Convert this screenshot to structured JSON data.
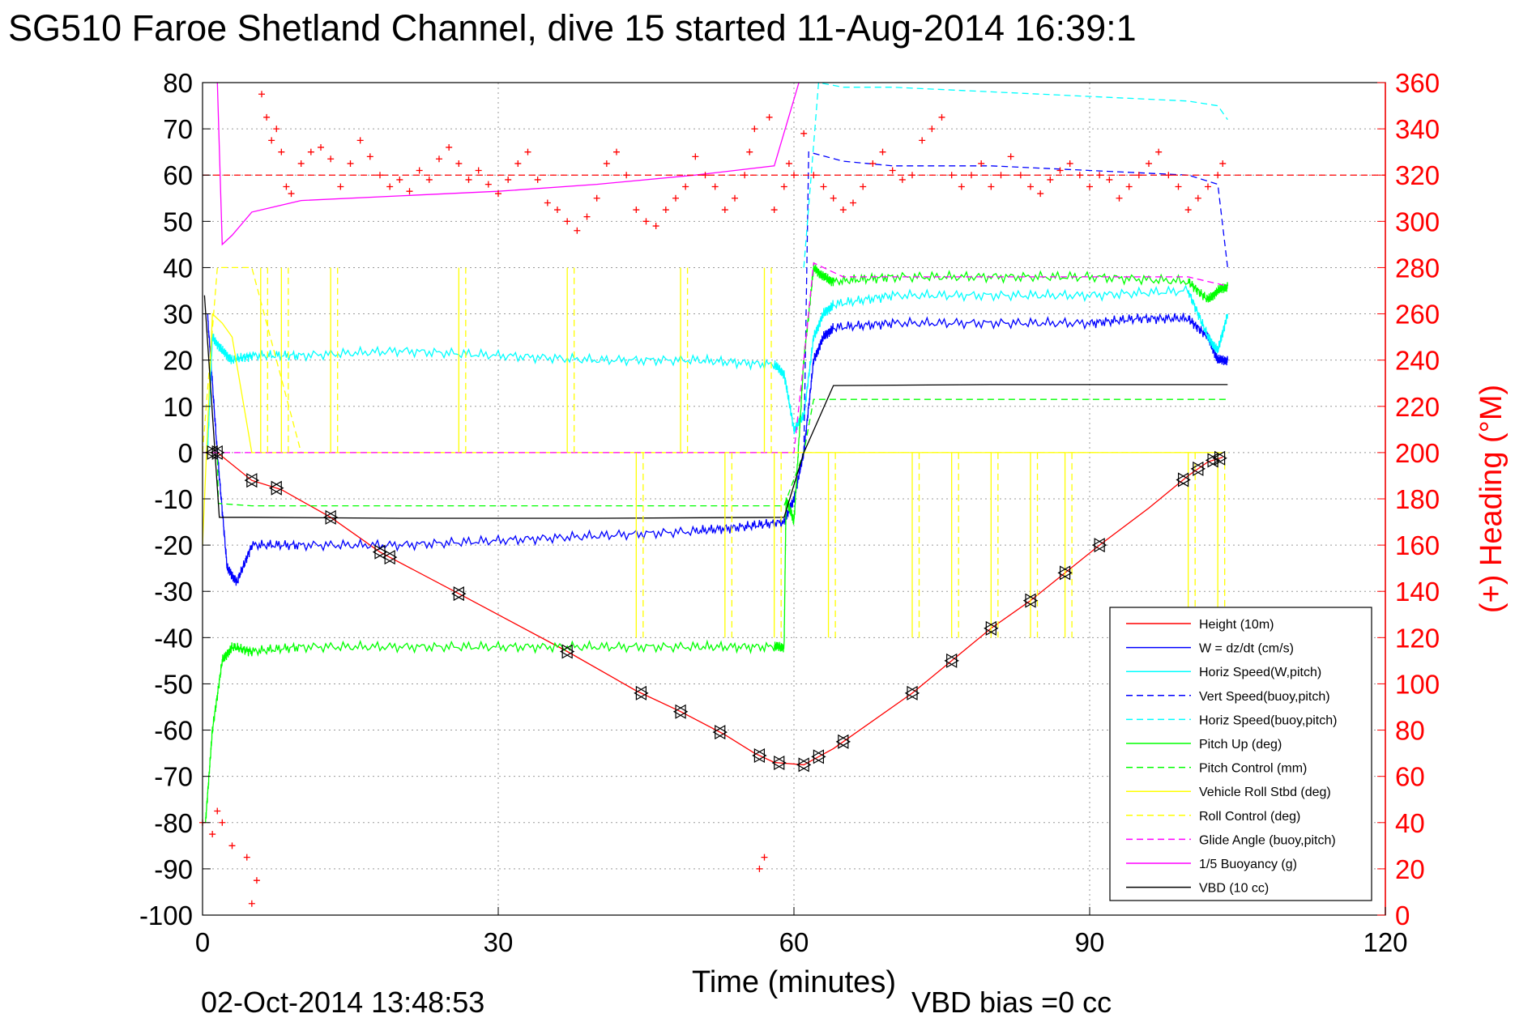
{
  "title": "SG510 Faroe Shetland Channel, dive 15 started 11-Aug-2014 16:39:1",
  "footer": {
    "timestamp": "02-Oct-2014 13:48:53",
    "vbd_bias": "VBD bias =0 cc"
  },
  "colors": {
    "height": "#ff0000",
    "w": "#0000ff",
    "horiz": "#00ffff",
    "pitch": "#00ff00",
    "roll": "#ffff00",
    "glide": "#ff00ff",
    "buoy": "#ff00ff",
    "vbd": "#000000",
    "heading": "#ff0000"
  },
  "chart_data": {
    "type": "line",
    "xlabel": "Time (minutes)",
    "ylabel_right": "(+) Heading (°M)",
    "xlim": [
      0,
      120
    ],
    "ylim_left": [
      -100,
      80
    ],
    "ylim_right": [
      0,
      360
    ],
    "xticks": [
      "0",
      "30",
      "60",
      "90",
      "120"
    ],
    "yticks_left": [
      "80",
      "70",
      "60",
      "50",
      "40",
      "30",
      "20",
      "10",
      "0",
      "-10",
      "-20",
      "-30",
      "-40",
      "-50",
      "-60",
      "-70",
      "-80",
      "-90",
      "-100"
    ],
    "yticks_right": [
      "360",
      "340",
      "320",
      "300",
      "280",
      "260",
      "240",
      "220",
      "200",
      "180",
      "160",
      "140",
      "120",
      "100",
      "80",
      "60",
      "40",
      "20",
      "0"
    ],
    "grid": true,
    "legend_position": "bottom-right",
    "heading_target_deg": 320,
    "legend": [
      {
        "key": "height",
        "label": "Height (10m)",
        "color": "#ff0000",
        "dash": false
      },
      {
        "key": "w",
        "label": "W = dz/dt (cm/s)",
        "color": "#0000ff",
        "dash": false
      },
      {
        "key": "horiz",
        "label": "Horiz Speed(W,pitch)",
        "color": "#00ffff",
        "dash": false
      },
      {
        "key": "vert_buoy",
        "label": "Vert Speed(buoy,pitch)",
        "color": "#0000ff",
        "dash": true
      },
      {
        "key": "horiz_buoy",
        "label": "Horiz Speed(buoy,pitch)",
        "color": "#00ffff",
        "dash": true
      },
      {
        "key": "pitch",
        "label": "Pitch Up (deg)",
        "color": "#00ff00",
        "dash": false
      },
      {
        "key": "pitch_ctrl",
        "label": "Pitch Control (mm)",
        "color": "#00ff00",
        "dash": true
      },
      {
        "key": "roll",
        "label": "Vehicle Roll Stbd (deg)",
        "color": "#ffff00",
        "dash": false
      },
      {
        "key": "roll_ctrl",
        "label": "Roll Control (deg)",
        "color": "#ffff00",
        "dash": true
      },
      {
        "key": "glide",
        "label": "Glide Angle (buoy,pitch)",
        "color": "#ff00ff",
        "dash": true
      },
      {
        "key": "buoy",
        "label": "1/5 Buoyancy (g)",
        "color": "#ff00ff",
        "dash": false
      },
      {
        "key": "vbd",
        "label": "VBD (10 cc)",
        "color": "#000000",
        "dash": false
      }
    ],
    "series": [
      {
        "key": "height",
        "x": [
          0,
          1.5,
          5,
          8,
          13,
          18,
          26,
          37,
          44,
          48.5,
          53,
          56,
          58,
          61,
          64,
          72,
          76,
          80,
          84,
          87.5,
          91,
          96,
          100,
          102,
          103.5
        ],
        "y": [
          0,
          0,
          -6,
          -8,
          -14,
          -21.5,
          -30.5,
          -43,
          -51.5,
          -56,
          -61,
          -65,
          -67,
          -67.5,
          -64,
          -52,
          -45,
          -38,
          -32,
          -26,
          -20,
          -12,
          -5,
          -2,
          -1
        ]
      },
      {
        "key": "w",
        "x": [
          0.5,
          1.5,
          2.5,
          3.5,
          5,
          10,
          20,
          30,
          40,
          50,
          55,
          59,
          60,
          61,
          62,
          63,
          64,
          70,
          80,
          90,
          95,
          100,
          102,
          103,
          104
        ],
        "y": [
          30,
          0,
          -25,
          -28,
          -20,
          -20,
          -20,
          -19,
          -18,
          -17,
          -16,
          -15,
          -10,
          0,
          20,
          25,
          27,
          28,
          28,
          28,
          29,
          29,
          25,
          20,
          20
        ]
      },
      {
        "key": "horiz",
        "x": [
          0.5,
          1,
          2,
          3,
          5,
          10,
          20,
          30,
          40,
          50,
          58,
          59,
          60,
          61,
          62,
          63,
          64,
          70,
          80,
          90,
          100,
          102,
          103,
          104
        ],
        "y": [
          0,
          25,
          22,
          20,
          21,
          21,
          22,
          21,
          20,
          20,
          19,
          17,
          5,
          8,
          25,
          30,
          32,
          34,
          34,
          34,
          35,
          25,
          22,
          30
        ]
      },
      {
        "key": "vert_buoy",
        "x": [
          61,
          61.5,
          65,
          70,
          80,
          90,
          100,
          103,
          104
        ],
        "y": [
          0,
          65,
          63,
          62,
          62,
          61,
          60,
          58,
          40
        ]
      },
      {
        "key": "horiz_buoy",
        "x": [
          61,
          62.5,
          65,
          70,
          80,
          90,
          100,
          103,
          104
        ],
        "y": [
          40,
          80,
          79,
          79,
          78,
          77,
          76,
          75,
          72
        ]
      },
      {
        "key": "pitch",
        "x": [
          0.3,
          1,
          2,
          3,
          5,
          10,
          20,
          30,
          40,
          50,
          58,
          59,
          59.2,
          60,
          61,
          62,
          63,
          64,
          70,
          80,
          90,
          100,
          102,
          103,
          104
        ],
        "y": [
          -80,
          -60,
          -45,
          -42,
          -43,
          -42,
          -42,
          -42,
          -42,
          -42,
          -42,
          -42,
          -10,
          -15,
          20,
          40,
          38,
          37,
          38,
          38,
          38,
          37,
          33,
          35,
          36
        ]
      },
      {
        "key": "pitch_ctrl",
        "x": [
          0,
          1.5,
          1.6,
          5,
          20,
          40,
          58,
          59,
          61,
          62,
          80,
          100,
          104
        ],
        "y": [
          0,
          0,
          -11,
          -11.5,
          -11.5,
          -11.5,
          -11.5,
          -11.5,
          0,
          11.5,
          11.5,
          11.5,
          11.5
        ]
      },
      {
        "key": "roll",
        "x": [
          0,
          1,
          2,
          3,
          5,
          10,
          20,
          30,
          40,
          50,
          55,
          58,
          60,
          62,
          70,
          80,
          90,
          100,
          102,
          103
        ],
        "y": [
          -20,
          30,
          28,
          25,
          0,
          0,
          0,
          0,
          0,
          0,
          0,
          0,
          0,
          0,
          0,
          0,
          0,
          0,
          0,
          0
        ]
      },
      {
        "key": "roll_ctrl",
        "x": [
          0,
          1.5,
          5,
          10,
          30,
          50,
          60,
          62,
          80,
          100,
          104
        ],
        "y": [
          0,
          40,
          40,
          0,
          0,
          0,
          0,
          0,
          0,
          0,
          0
        ]
      },
      {
        "key": "glide",
        "x": [
          0,
          30,
          60,
          61,
          62,
          65,
          80,
          100,
          104
        ],
        "y": [
          0,
          0,
          0,
          20,
          41,
          38,
          38,
          38,
          36
        ]
      },
      {
        "key": "buoy",
        "x": [
          1.5,
          2,
          3,
          5,
          10,
          20,
          30,
          40,
          50,
          58,
          60.5
        ],
        "y": [
          80,
          45,
          47,
          52,
          54.5,
          55.5,
          56.5,
          58,
          60,
          62,
          80
        ]
      },
      {
        "key": "vbd",
        "x": [
          0.2,
          1.7,
          5,
          20,
          40,
          59,
          61,
          64,
          80,
          100,
          104
        ],
        "y": [
          34,
          -14,
          -14,
          -14.2,
          -14.2,
          -14,
          0,
          14.5,
          14.7,
          14.7,
          14.7
        ]
      }
    ],
    "roll_spikes": {
      "up": [
        5.9,
        8,
        13,
        26,
        37,
        48.5,
        57
      ],
      "down": [
        44,
        53,
        58,
        63.5,
        72,
        76,
        80,
        84,
        87.5,
        100,
        103
      ]
    },
    "heading": {
      "x": [
        0,
        1,
        1.5,
        2,
        3,
        4.5,
        5,
        5.5,
        6,
        6.5,
        7,
        7.5,
        8,
        8.5,
        9,
        10,
        11,
        12,
        13,
        14,
        15,
        16,
        17,
        18,
        19,
        20,
        21,
        22,
        23,
        24,
        25,
        26,
        27,
        28,
        29,
        30,
        31,
        32,
        33,
        34,
        35,
        36,
        37,
        38,
        39,
        40,
        41,
        42,
        43,
        44,
        45,
        46,
        47,
        48,
        49,
        50,
        51,
        52,
        53,
        54,
        55,
        55.5,
        56,
        56.5,
        57,
        57.5,
        58,
        59,
        59.5,
        60,
        61,
        62,
        63,
        64,
        65,
        66,
        67,
        68,
        69,
        70,
        71,
        72,
        73,
        74,
        75,
        76,
        77,
        78,
        79,
        80,
        81,
        82,
        83,
        84,
        85,
        86,
        87,
        88,
        89,
        90,
        91,
        92,
        93,
        94,
        95,
        96,
        97,
        98,
        99,
        100,
        101,
        102,
        103,
        103.5
      ],
      "y": [
        40,
        35,
        45,
        40,
        30,
        25,
        5,
        15,
        355,
        345,
        335,
        340,
        330,
        315,
        312,
        325,
        330,
        332,
        327,
        315,
        325,
        335,
        328,
        320,
        315,
        318,
        313,
        322,
        318,
        327,
        332,
        325,
        318,
        322,
        316,
        312,
        318,
        325,
        330,
        318,
        308,
        305,
        300,
        296,
        302,
        310,
        325,
        330,
        320,
        305,
        300,
        298,
        305,
        310,
        315,
        328,
        320,
        315,
        305,
        310,
        320,
        330,
        340,
        20,
        25,
        345,
        305,
        315,
        325,
        320,
        338,
        320,
        315,
        310,
        305,
        308,
        315,
        325,
        330,
        322,
        318,
        320,
        335,
        340,
        345,
        320,
        315,
        320,
        325,
        315,
        320,
        328,
        320,
        315,
        312,
        318,
        322,
        325,
        320,
        315,
        320,
        318,
        310,
        315,
        320,
        325,
        330,
        320,
        315,
        305,
        310,
        315,
        320,
        325
      ]
    },
    "height_markers_x": [
      1,
      1.5,
      5,
      7.5,
      13,
      18,
      19,
      26,
      37,
      44.5,
      48.5,
      52.5,
      56.5,
      58.5,
      61,
      62.5,
      65,
      72,
      76,
      80,
      84,
      87.5,
      91,
      99.5,
      101,
      102.5,
      103.2
    ]
  }
}
